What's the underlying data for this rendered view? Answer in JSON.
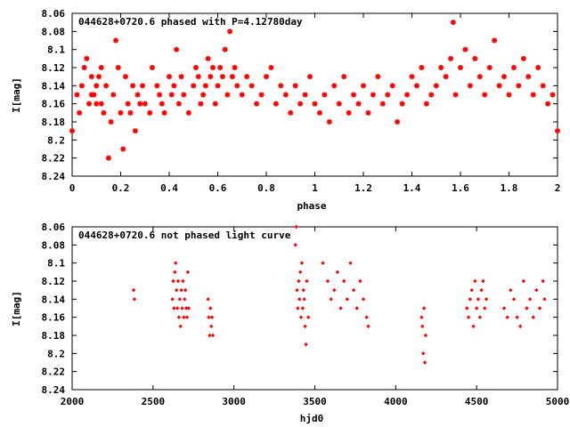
{
  "chart_data": [
    {
      "type": "scatter",
      "title": "044628+0720.6 phased with P=4.12780day",
      "xlabel": "phase",
      "ylabel": "I[mag]",
      "xlim": [
        0,
        2
      ],
      "ylim": [
        8.24,
        8.06
      ],
      "y_reversed": true,
      "grid": false,
      "x_ticks": [
        "0",
        "0.2",
        "0.4",
        "0.6",
        "0.8",
        "1",
        "1.2",
        "1.4",
        "1.6",
        "1.8",
        "2"
      ],
      "y_ticks": [
        "8.06",
        "8.08",
        "8.1",
        "8.12",
        "8.14",
        "8.16",
        "8.18",
        "8.2",
        "8.22",
        "8.24"
      ],
      "marker": "star",
      "color": "#ff0000",
      "series": [
        {
          "x": [
            0.0,
            0.02,
            0.03,
            0.04,
            0.05,
            0.06,
            0.07,
            0.08,
            0.08,
            0.09,
            0.1,
            0.1,
            0.11,
            0.12,
            0.12,
            0.13,
            0.14,
            0.15,
            0.16,
            0.17,
            0.18,
            0.19,
            0.2,
            0.21,
            0.22,
            0.23,
            0.24,
            0.25,
            0.26,
            0.27,
            0.28,
            0.29,
            0.3,
            0.32,
            0.33,
            0.35,
            0.36,
            0.37,
            0.38,
            0.4,
            0.41,
            0.42,
            0.43,
            0.44,
            0.45,
            0.46,
            0.48,
            0.5,
            0.51,
            0.52,
            0.53,
            0.54,
            0.55,
            0.56,
            0.57,
            0.58,
            0.59,
            0.6,
            0.61,
            0.62,
            0.63,
            0.64,
            0.65,
            0.66,
            0.67,
            0.68,
            0.7,
            0.72,
            0.74,
            0.76,
            0.78,
            0.8,
            0.82,
            0.84,
            0.86,
            0.88,
            0.9,
            0.92,
            0.94,
            0.96,
            0.98,
            1.0,
            1.02,
            1.04,
            1.06,
            1.08,
            1.1,
            1.12,
            1.14,
            1.16,
            1.18,
            1.2,
            1.22,
            1.24,
            1.26,
            1.28,
            1.3,
            1.32,
            1.34,
            1.36,
            1.38,
            1.4,
            1.42,
            1.44,
            1.46,
            1.48,
            1.5,
            1.52,
            1.54,
            1.56,
            1.57,
            1.58,
            1.6,
            1.62,
            1.64,
            1.66,
            1.68,
            1.7,
            1.72,
            1.74,
            1.76,
            1.78,
            1.8,
            1.82,
            1.84,
            1.86,
            1.88,
            1.9,
            1.92,
            1.94,
            1.96,
            1.98,
            2.0
          ],
          "y": [
            8.19,
            8.15,
            8.17,
            8.14,
            8.12,
            8.11,
            8.16,
            8.15,
            8.13,
            8.15,
            8.16,
            8.14,
            8.13,
            8.12,
            8.16,
            8.17,
            8.14,
            8.22,
            8.18,
            8.15,
            8.09,
            8.12,
            8.17,
            8.21,
            8.13,
            8.16,
            8.17,
            8.14,
            8.19,
            8.15,
            8.16,
            8.14,
            8.16,
            8.17,
            8.12,
            8.14,
            8.15,
            8.16,
            8.17,
            8.13,
            8.15,
            8.14,
            8.1,
            8.16,
            8.13,
            8.15,
            8.17,
            8.14,
            8.12,
            8.13,
            8.16,
            8.15,
            8.14,
            8.11,
            8.13,
            8.12,
            8.16,
            8.14,
            8.12,
            8.13,
            8.1,
            8.15,
            8.08,
            8.13,
            8.12,
            8.14,
            8.15,
            8.13,
            8.14,
            8.16,
            8.15,
            8.13,
            8.12,
            8.16,
            8.14,
            8.15,
            8.17,
            8.14,
            8.16,
            8.15,
            8.13,
            8.16,
            8.17,
            8.15,
            8.18,
            8.14,
            8.16,
            8.13,
            8.17,
            8.15,
            8.16,
            8.14,
            8.17,
            8.15,
            8.13,
            8.16,
            8.15,
            8.14,
            8.18,
            8.16,
            8.15,
            8.13,
            8.14,
            8.12,
            8.16,
            8.15,
            8.14,
            8.12,
            8.13,
            8.11,
            8.07,
            8.15,
            8.12,
            8.1,
            8.14,
            8.11,
            8.13,
            8.15,
            8.12,
            8.09,
            8.14,
            8.13,
            8.15,
            8.12,
            8.14,
            8.11,
            8.13,
            8.15,
            8.12,
            8.14,
            8.16,
            8.15,
            8.19
          ]
        }
      ]
    },
    {
      "type": "scatter",
      "title": "044628+0720.6 not phased light curve",
      "xlabel": "hjd0",
      "ylabel": "I[mag]",
      "xlim": [
        2000,
        5000
      ],
      "ylim": [
        8.24,
        8.06
      ],
      "y_reversed": true,
      "grid": false,
      "x_ticks": [
        "2000",
        "2500",
        "3000",
        "3500",
        "4000",
        "4500",
        "5000"
      ],
      "y_ticks": [
        "8.06",
        "8.08",
        "8.1",
        "8.12",
        "8.14",
        "8.16",
        "8.18",
        "8.2",
        "8.22",
        "8.24"
      ],
      "marker": "diamond",
      "color": "#ff0000",
      "series": [
        {
          "x": [
            2380,
            2385,
            2620,
            2625,
            2630,
            2635,
            2640,
            2645,
            2650,
            2655,
            2660,
            2665,
            2670,
            2675,
            2680,
            2685,
            2690,
            2695,
            2700,
            2705,
            2710,
            2715,
            2720,
            2840,
            2845,
            2850,
            2855,
            2860,
            2865,
            2870,
            3380,
            3385,
            3390,
            3395,
            3400,
            3405,
            3410,
            3415,
            3420,
            3425,
            3430,
            3435,
            3440,
            3445,
            3450,
            3460,
            3550,
            3580,
            3600,
            3620,
            3640,
            3660,
            3680,
            3700,
            3720,
            3740,
            3760,
            3780,
            3800,
            3820,
            3830,
            4160,
            4165,
            4170,
            4175,
            4180,
            4185,
            4440,
            4450,
            4460,
            4470,
            4480,
            4490,
            4500,
            4510,
            4520,
            4530,
            4540,
            4550,
            4560,
            4670,
            4690,
            4710,
            4730,
            4750,
            4770,
            4790,
            4810,
            4830,
            4850,
            4870,
            4890,
            4910,
            4920
          ],
          "y": [
            8.13,
            8.14,
            8.14,
            8.12,
            8.15,
            8.11,
            8.1,
            8.13,
            8.15,
            8.12,
            8.16,
            8.14,
            8.17,
            8.13,
            8.15,
            8.12,
            8.16,
            8.14,
            8.13,
            8.15,
            8.16,
            8.11,
            8.15,
            8.14,
            8.16,
            8.18,
            8.15,
            8.17,
            8.16,
            8.18,
            8.08,
            8.06,
            8.13,
            8.15,
            8.12,
            8.14,
            8.11,
            8.16,
            8.1,
            8.15,
            8.13,
            8.14,
            8.17,
            8.19,
            8.12,
            8.16,
            8.1,
            8.12,
            8.14,
            8.13,
            8.11,
            8.15,
            8.12,
            8.14,
            8.1,
            8.13,
            8.15,
            8.12,
            8.14,
            8.16,
            8.17,
            8.16,
            8.17,
            8.2,
            8.15,
            8.21,
            8.18,
            8.15,
            8.16,
            8.14,
            8.13,
            8.17,
            8.12,
            8.15,
            8.14,
            8.16,
            8.13,
            8.12,
            8.15,
            8.14,
            8.15,
            8.16,
            8.13,
            8.14,
            8.16,
            8.17,
            8.12,
            8.15,
            8.14,
            8.16,
            8.13,
            8.15,
            8.12,
            8.14
          ]
        }
      ]
    }
  ]
}
